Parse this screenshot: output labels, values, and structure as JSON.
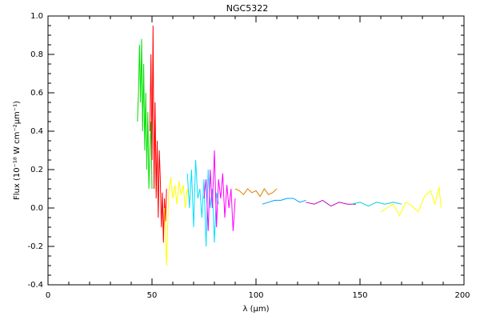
{
  "chart_data": {
    "type": "line",
    "title": "NGC5322",
    "xlabel": "λ (μm)",
    "ylabel": "Flux (10⁻¹⁸ W cm⁻²μm⁻¹)",
    "xlim": [
      0,
      200
    ],
    "ylim": [
      -0.4,
      1.0
    ],
    "x_ticks": [
      "0",
      "50",
      "100",
      "150",
      "200"
    ],
    "y_ticks": [
      "-0.4",
      "-0.2",
      "0.0",
      "0.2",
      "0.4",
      "0.6",
      "0.8",
      "1.0"
    ],
    "grid": false,
    "series": [
      {
        "color": "#00e000",
        "x": [
          43,
          43.5,
          44,
          44.5,
          45,
          45.5,
          46,
          46.5,
          47,
          47.5,
          48,
          48.5,
          49,
          49.5,
          50
        ],
        "y": [
          0.45,
          0.6,
          0.85,
          0.55,
          0.88,
          0.4,
          0.75,
          0.3,
          0.6,
          0.2,
          0.5,
          0.1,
          0.3,
          0.45,
          0.1
        ]
      },
      {
        "color": "#ff0000",
        "x": [
          49,
          49.5,
          50,
          50.5,
          51,
          51.5,
          52,
          52.5,
          53,
          53.5,
          54,
          54.5,
          55,
          55.5,
          56,
          56.5,
          57
        ],
        "y": [
          0.4,
          0.8,
          0.25,
          0.95,
          0.1,
          0.55,
          0.05,
          0.35,
          -0.05,
          0.3,
          0.15,
          -0.1,
          0.08,
          -0.18,
          0.05,
          -0.07,
          0.1
        ]
      },
      {
        "color": "#ffff00",
        "x": [
          56,
          57,
          58,
          59,
          60,
          61,
          62,
          63,
          64,
          65,
          66,
          67,
          68
        ],
        "y": [
          0.0,
          -0.3,
          0.08,
          0.16,
          0.05,
          0.12,
          0.02,
          0.14,
          0.07,
          0.12,
          0.0,
          0.1,
          0.05
        ]
      },
      {
        "color": "#00e0ff",
        "x": [
          67,
          68,
          69,
          70,
          71,
          72,
          73,
          74,
          75,
          76,
          77,
          78,
          79,
          80,
          81,
          82
        ],
        "y": [
          0.18,
          0.0,
          0.2,
          -0.1,
          0.25,
          0.05,
          0.1,
          -0.05,
          0.15,
          -0.2,
          0.2,
          0.0,
          0.1,
          -0.18,
          0.08,
          0.02
        ]
      },
      {
        "color": "#ff00ff",
        "x": [
          75,
          76,
          77,
          78,
          79,
          80,
          81,
          82,
          83,
          84,
          85,
          86,
          87,
          88,
          89,
          90
        ],
        "y": [
          0.05,
          0.15,
          -0.12,
          0.2,
          0.0,
          0.3,
          -0.1,
          0.15,
          0.05,
          0.18,
          -0.05,
          0.12,
          0.0,
          0.1,
          -0.12,
          0.05
        ]
      },
      {
        "color": "#e08000",
        "x": [
          90,
          92,
          94,
          96,
          98,
          100,
          102,
          104,
          106,
          108,
          110
        ],
        "y": [
          0.1,
          0.09,
          0.07,
          0.1,
          0.08,
          0.09,
          0.06,
          0.1,
          0.07,
          0.08,
          0.1
        ]
      },
      {
        "color": "#00a0ff",
        "x": [
          103,
          106,
          109,
          112,
          115,
          118,
          121,
          124
        ],
        "y": [
          0.02,
          0.03,
          0.04,
          0.04,
          0.05,
          0.05,
          0.03,
          0.04
        ]
      },
      {
        "color": "#c000c0",
        "x": [
          124,
          128,
          132,
          136,
          140,
          144,
          148
        ],
        "y": [
          0.03,
          0.02,
          0.04,
          0.01,
          0.03,
          0.02,
          0.02
        ]
      },
      {
        "color": "#00d0d0",
        "x": [
          146,
          150,
          154,
          158,
          162,
          166,
          170
        ],
        "y": [
          0.02,
          0.03,
          0.01,
          0.03,
          0.02,
          0.03,
          0.02
        ]
      },
      {
        "color": "#ffff00",
        "x": [
          160,
          163,
          166,
          169,
          172,
          175,
          178,
          181,
          184,
          186,
          188,
          189
        ],
        "y": [
          -0.02,
          0.0,
          0.02,
          -0.04,
          0.03,
          0.01,
          -0.02,
          0.06,
          0.09,
          0.02,
          0.11,
          0.0
        ]
      }
    ]
  }
}
